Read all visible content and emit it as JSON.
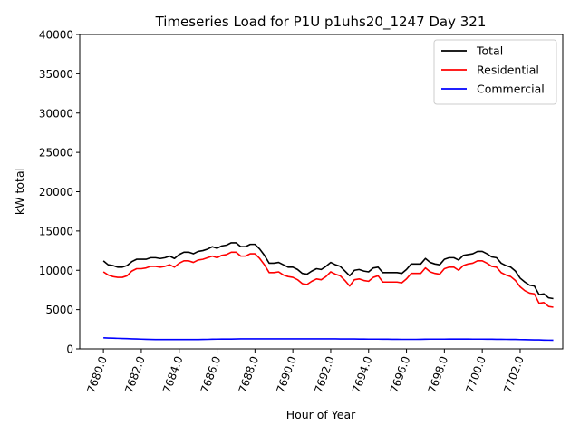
{
  "chart_data": {
    "type": "line",
    "title": "Timeseries Load for P1U p1uhs20_1247  Day 321",
    "xlabel": "Hour of Year",
    "ylabel": "kW total",
    "xlim": [
      7678.75,
      7704.25
    ],
    "ylim": [
      0,
      40000
    ],
    "x_ticks": [
      7680,
      7682,
      7684,
      7686,
      7688,
      7690,
      7692,
      7694,
      7696,
      7698,
      7700,
      7702
    ],
    "x_tick_labels": [
      "7680.0",
      "7682.0",
      "7684.0",
      "7686.0",
      "7688.0",
      "7690.0",
      "7692.0",
      "7694.0",
      "7696.0",
      "7698.0",
      "7700.0",
      "7702.0"
    ],
    "y_ticks": [
      0,
      5000,
      10000,
      15000,
      20000,
      25000,
      30000,
      35000,
      40000
    ],
    "y_tick_labels": [
      "0",
      "5000",
      "10000",
      "15000",
      "20000",
      "25000",
      "30000",
      "35000",
      "40000"
    ],
    "grid": false,
    "legend_position": "top-right",
    "x_start": 7680,
    "x_step": 0.25,
    "series": [
      {
        "name": "Total",
        "color": "#000000",
        "values": [
          11200,
          10700,
          10600,
          10400,
          10400,
          10600,
          11100,
          11400,
          11400,
          11400,
          11600,
          11600,
          11500,
          11600,
          11800,
          11500,
          12000,
          12300,
          12300,
          12100,
          12400,
          12500,
          12700,
          13000,
          12800,
          13100,
          13200,
          13500,
          13500,
          13000,
          13000,
          13300,
          13300,
          12700,
          11900,
          10900,
          10900,
          11000,
          10700,
          10400,
          10400,
          10100,
          9600,
          9500,
          9900,
          10200,
          10100,
          10500,
          11000,
          10700,
          10500,
          9900,
          9300,
          10000,
          10100,
          9900,
          9800,
          10300,
          10400,
          9700,
          9700,
          9700,
          9700,
          9600,
          10100,
          10800,
          10800,
          10800,
          11500,
          11000,
          10800,
          10700,
          11400,
          11600,
          11600,
          11300,
          11900,
          12000,
          12100,
          12400,
          12400,
          12100,
          11700,
          11600,
          10900,
          10600,
          10400,
          9900,
          9000,
          8500,
          8100,
          8000,
          6900,
          7000,
          6500,
          6400
        ]
      },
      {
        "name": "Residential",
        "color": "#ff0000",
        "values": [
          9800,
          9400,
          9200,
          9100,
          9100,
          9300,
          9900,
          10200,
          10200,
          10300,
          10500,
          10500,
          10400,
          10500,
          10700,
          10400,
          10900,
          11200,
          11200,
          11000,
          11300,
          11400,
          11600,
          11800,
          11600,
          11900,
          12000,
          12300,
          12300,
          11800,
          11800,
          12100,
          12100,
          11500,
          10700,
          9700,
          9700,
          9800,
          9400,
          9200,
          9100,
          8800,
          8300,
          8200,
          8600,
          8900,
          8800,
          9200,
          9800,
          9500,
          9300,
          8700,
          8000,
          8800,
          8900,
          8700,
          8600,
          9100,
          9300,
          8500,
          8500,
          8500,
          8500,
          8400,
          8900,
          9600,
          9600,
          9600,
          10300,
          9800,
          9600,
          9500,
          10200,
          10400,
          10400,
          10000,
          10600,
          10800,
          10900,
          11200,
          11200,
          10900,
          10500,
          10400,
          9700,
          9400,
          9200,
          8700,
          7900,
          7400,
          7100,
          7000,
          5800,
          5900,
          5400,
          5300
        ]
      },
      {
        "name": "Commercial",
        "color": "#0000ff",
        "values": [
          1400,
          1380,
          1360,
          1340,
          1320,
          1300,
          1280,
          1260,
          1240,
          1220,
          1200,
          1190,
          1190,
          1190,
          1190,
          1190,
          1190,
          1190,
          1190,
          1190,
          1190,
          1200,
          1210,
          1230,
          1240,
          1250,
          1250,
          1250,
          1260,
          1270,
          1270,
          1270,
          1270,
          1270,
          1270,
          1270,
          1270,
          1270,
          1270,
          1270,
          1270,
          1270,
          1270,
          1280,
          1280,
          1280,
          1280,
          1280,
          1280,
          1270,
          1260,
          1260,
          1260,
          1260,
          1250,
          1250,
          1240,
          1240,
          1240,
          1230,
          1230,
          1220,
          1220,
          1210,
          1210,
          1210,
          1210,
          1220,
          1230,
          1240,
          1240,
          1240,
          1240,
          1250,
          1250,
          1250,
          1250,
          1250,
          1240,
          1240,
          1240,
          1230,
          1230,
          1220,
          1220,
          1210,
          1200,
          1200,
          1180,
          1170,
          1160,
          1150,
          1140,
          1120,
          1110,
          1100
        ]
      }
    ]
  }
}
